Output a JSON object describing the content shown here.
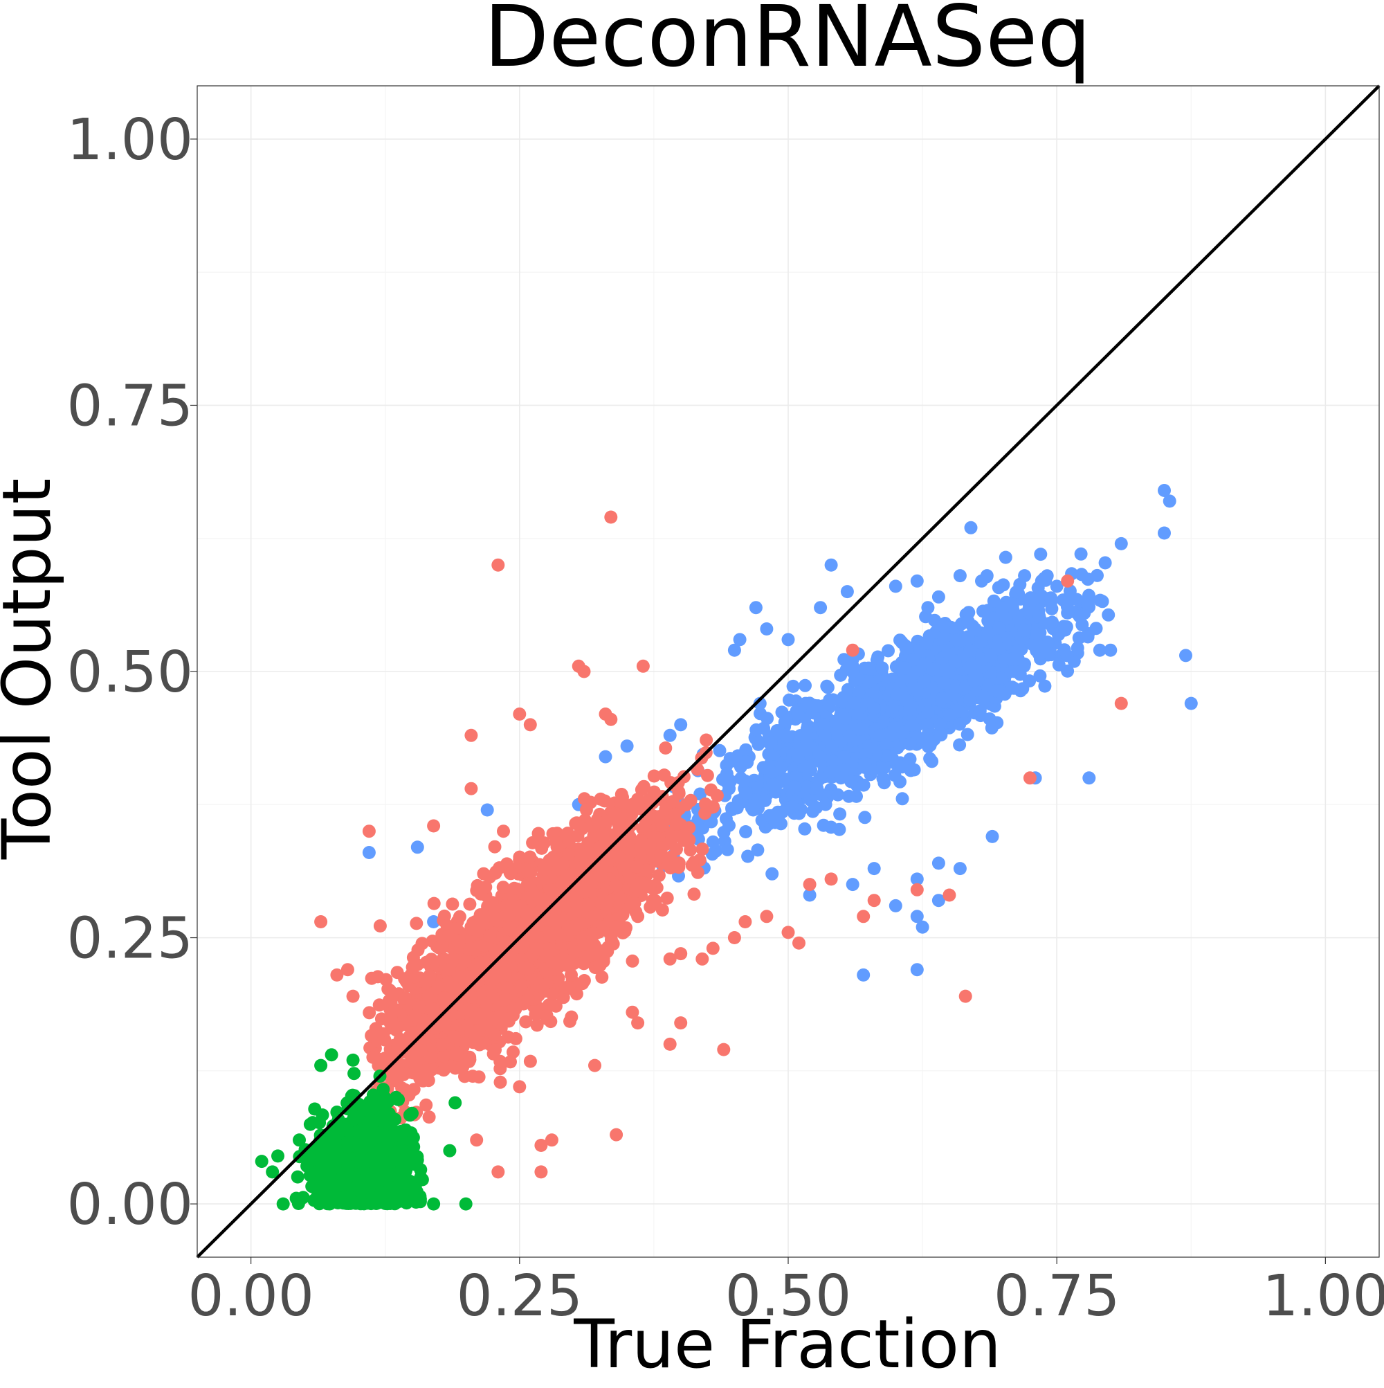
{
  "chart_data": {
    "type": "scatter",
    "title": "DeconRNASeq",
    "xlabel": "True Fraction",
    "ylabel": "Tool Output",
    "xlim": [
      -0.05,
      1.05
    ],
    "ylim": [
      -0.05,
      1.05
    ],
    "x_ticks": [
      0.0,
      0.25,
      0.5,
      0.75,
      1.0
    ],
    "x_tick_labels": [
      "0.00",
      "0.25",
      "0.50",
      "0.75",
      "1.00"
    ],
    "y_ticks": [
      0.0,
      0.25,
      0.5,
      0.75,
      1.0
    ],
    "y_tick_labels": [
      "0.00",
      "0.25",
      "0.50",
      "0.75",
      "1.00"
    ],
    "grid": true,
    "legend": "none",
    "reference_line": "y = x",
    "colors": {
      "blue_series": "#619cff",
      "red_series": "#f8766d",
      "green_series": "#00ba38",
      "reference_line": "#000000"
    },
    "series": [
      {
        "color": "#619cff",
        "x": [
          0.11,
          0.155,
          0.17,
          0.22,
          0.305,
          0.33,
          0.35,
          0.39,
          0.4,
          0.45,
          0.455,
          0.47,
          0.48,
          0.5,
          0.53,
          0.54,
          0.555,
          0.56,
          0.575,
          0.58,
          0.585,
          0.6,
          0.62,
          0.62,
          0.63,
          0.64,
          0.66,
          0.67,
          0.68,
          0.685,
          0.69,
          0.7,
          0.72,
          0.73,
          0.75,
          0.76,
          0.78,
          0.79,
          0.8,
          0.81,
          0.85,
          0.85,
          0.855,
          0.87,
          0.875,
          0.485,
          0.52,
          0.58,
          0.6,
          0.62,
          0.62,
          0.625,
          0.64,
          0.64,
          0.66,
          0.57,
          0.56
        ],
        "y": [
          0.33,
          0.335,
          0.265,
          0.37,
          0.375,
          0.42,
          0.43,
          0.44,
          0.45,
          0.52,
          0.53,
          0.56,
          0.54,
          0.53,
          0.56,
          0.6,
          0.575,
          0.505,
          0.49,
          0.465,
          0.44,
          0.58,
          0.585,
          0.305,
          0.56,
          0.57,
          0.59,
          0.635,
          0.585,
          0.59,
          0.345,
          0.56,
          0.59,
          0.4,
          0.58,
          0.555,
          0.4,
          0.52,
          0.52,
          0.62,
          0.63,
          0.67,
          0.66,
          0.515,
          0.47,
          0.31,
          0.29,
          0.315,
          0.28,
          0.27,
          0.22,
          0.26,
          0.32,
          0.285,
          0.315,
          0.215,
          0.3
        ],
        "clusters": [
          {
            "x_center": 0.6,
            "y_center": 0.465,
            "sd_along": 0.085,
            "sd_across": 0.026,
            "n": 1500,
            "slope": 0.55,
            "x_range": [
              0.38,
              0.8
            ]
          }
        ]
      },
      {
        "color": "#f8766d",
        "x": [
          0.065,
          0.08,
          0.09,
          0.095,
          0.11,
          0.17,
          0.205,
          0.205,
          0.21,
          0.23,
          0.23,
          0.235,
          0.25,
          0.26,
          0.27,
          0.28,
          0.305,
          0.31,
          0.33,
          0.335,
          0.335,
          0.34,
          0.355,
          0.36,
          0.36,
          0.365,
          0.39,
          0.39,
          0.4,
          0.4,
          0.42,
          0.43,
          0.44,
          0.45,
          0.46,
          0.48,
          0.5,
          0.51,
          0.52,
          0.54,
          0.56,
          0.57,
          0.58,
          0.62,
          0.65,
          0.665,
          0.725,
          0.76,
          0.81,
          0.27,
          0.25,
          0.32
        ],
        "y": [
          0.265,
          0.215,
          0.22,
          0.195,
          0.35,
          0.355,
          0.44,
          0.39,
          0.06,
          0.03,
          0.6,
          0.35,
          0.46,
          0.45,
          0.03,
          0.06,
          0.505,
          0.5,
          0.46,
          0.455,
          0.645,
          0.065,
          0.18,
          0.17,
          0.27,
          0.505,
          0.15,
          0.23,
          0.17,
          0.235,
          0.23,
          0.24,
          0.145,
          0.25,
          0.265,
          0.27,
          0.255,
          0.245,
          0.3,
          0.305,
          0.52,
          0.27,
          0.285,
          0.295,
          0.29,
          0.195,
          0.4,
          0.585,
          0.47,
          0.055,
          0.11,
          0.13
        ],
        "clusters": [
          {
            "x_center": 0.255,
            "y_center": 0.245,
            "sd_along": 0.068,
            "sd_across": 0.034,
            "n": 2400,
            "slope": 0.78,
            "x_range": [
              0.11,
              0.44
            ]
          }
        ]
      },
      {
        "color": "#00ba38",
        "x": [
          0.01,
          0.02,
          0.03,
          0.025,
          0.045,
          0.075,
          0.095,
          0.17,
          0.2,
          0.185,
          0.15,
          0.135,
          0.065,
          0.12,
          0.19
        ],
        "y": [
          0.04,
          0.03,
          0.0,
          0.045,
          0.06,
          0.14,
          0.135,
          0.0,
          0.0,
          0.05,
          0.085,
          0.1,
          0.13,
          0.12,
          0.095
        ],
        "clusters": [
          {
            "x_center": 0.105,
            "y_center": 0.03,
            "sd_along": 0.022,
            "sd_across": 0.028,
            "n": 1100,
            "slope": 0.0,
            "x_range": [
              0.04,
              0.16
            ],
            "y_floor": 0.0
          }
        ]
      }
    ]
  }
}
